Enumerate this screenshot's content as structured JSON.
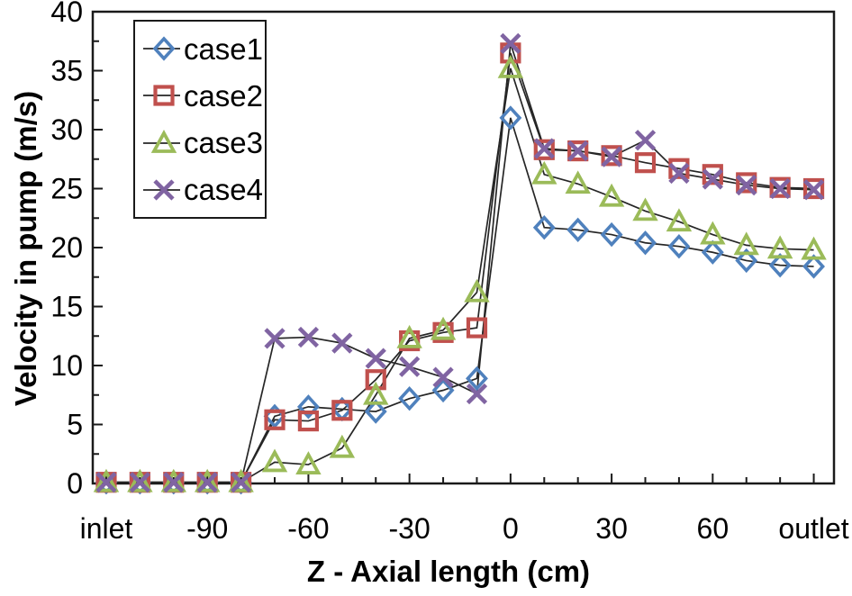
{
  "chart_data": {
    "type": "line",
    "title": "",
    "xlabel": "Z - Axial length (cm)",
    "ylabel": "Velocity in pump (m/s)",
    "grid": false,
    "legend_position": "top-left",
    "xlim": [
      -124,
      96
    ],
    "ylim": [
      0,
      40
    ],
    "x_major_ticks": [
      -120,
      -90,
      -60,
      -30,
      0,
      30,
      60,
      90
    ],
    "x_tick_labels": [
      "inlet",
      "-90",
      "-60",
      "-30",
      "0",
      "30",
      "60",
      "outlet"
    ],
    "x_minor_step": 10,
    "y_ticks": [
      0,
      5,
      10,
      15,
      20,
      25,
      30,
      35,
      40
    ],
    "y_minor_step": 2.5,
    "line_color": "#262626",
    "axis_color": "#1a1a1a",
    "x": [
      -120,
      -110,
      -100,
      -90,
      -80,
      -70,
      -60,
      -50,
      -40,
      -30,
      -20,
      -10,
      0,
      10,
      20,
      30,
      40,
      50,
      60,
      70,
      80,
      90
    ],
    "series": [
      {
        "name": "case1",
        "marker": "diamond",
        "color": "#4F81BD",
        "values": [
          0.1,
          0.1,
          0.1,
          0.1,
          0.1,
          5.7,
          6.5,
          6.3,
          6.1,
          7.2,
          7.9,
          8.9,
          31.0,
          21.7,
          21.5,
          21.1,
          20.4,
          20.1,
          19.6,
          18.9,
          18.5,
          18.4
        ]
      },
      {
        "name": "case2",
        "marker": "square",
        "color": "#C0504D",
        "values": [
          0.1,
          0.1,
          0.1,
          0.1,
          0.1,
          5.4,
          5.3,
          6.2,
          8.8,
          12.1,
          12.8,
          13.2,
          36.5,
          28.3,
          28.2,
          27.8,
          27.2,
          26.7,
          26.2,
          25.5,
          25.1,
          25.0
        ]
      },
      {
        "name": "case3",
        "marker": "triangle",
        "color": "#9BBB59",
        "values": [
          0.1,
          0.1,
          0.1,
          0.1,
          0.1,
          1.8,
          1.6,
          3.0,
          7.5,
          12.3,
          13.0,
          16.2,
          35.2,
          26.2,
          25.4,
          24.3,
          23.1,
          22.2,
          21.1,
          20.2,
          19.9,
          19.8
        ]
      },
      {
        "name": "case4",
        "marker": "x",
        "color": "#8064A2",
        "values": [
          0.1,
          0.1,
          0.1,
          0.1,
          0.1,
          12.3,
          12.4,
          11.9,
          10.6,
          9.9,
          9.0,
          7.6,
          37.3,
          28.4,
          28.2,
          27.7,
          29.1,
          26.3,
          25.8,
          25.3,
          25.0,
          24.9
        ]
      }
    ]
  }
}
